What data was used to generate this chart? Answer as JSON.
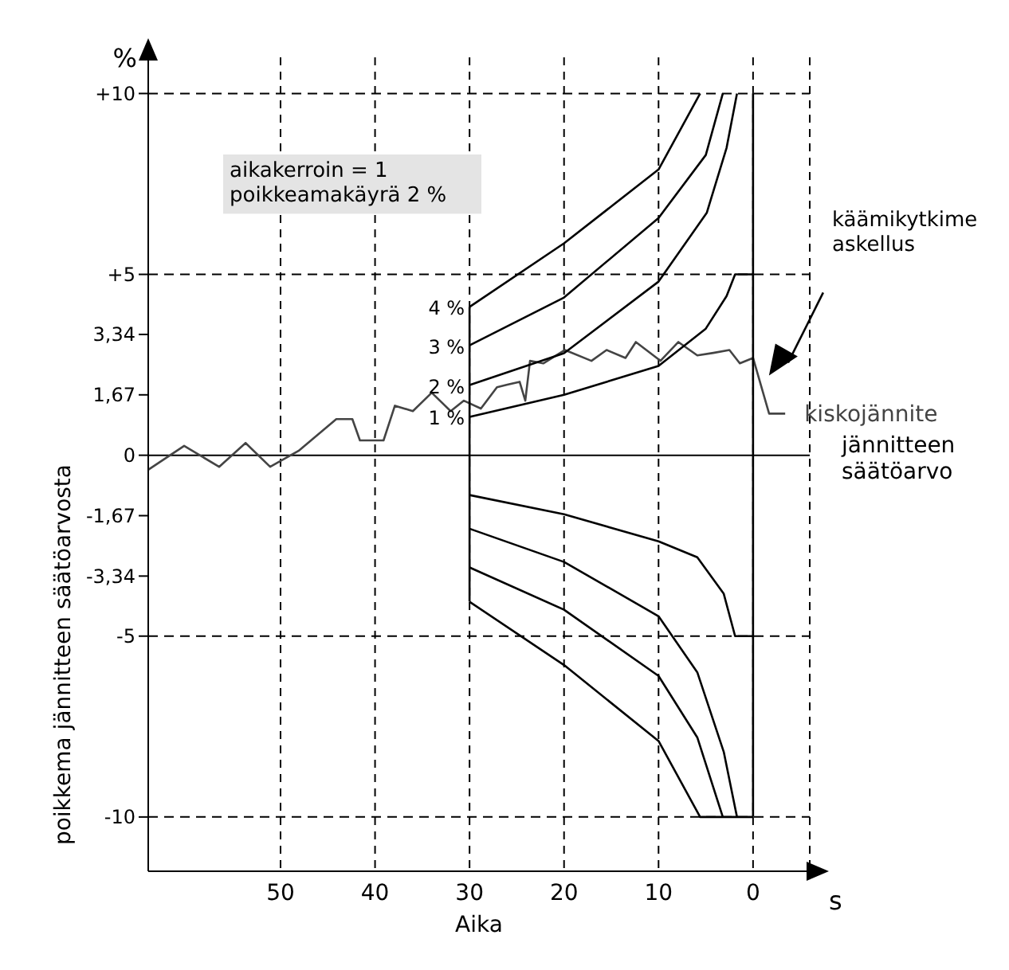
{
  "chart_data": {
    "type": "line",
    "xlabel": "Aika",
    "ylabel": "poikkema jännitteen säätöarvosta",
    "xlim": [
      64,
      -6
    ],
    "ylim": [
      -11.5,
      11
    ],
    "xticks": [
      50,
      40,
      30,
      20,
      10,
      0
    ],
    "yticks": [
      {
        "value": 10,
        "label": "+10"
      },
      {
        "value": 5,
        "label": "+5"
      },
      {
        "value": 3.34,
        "label": "3,34"
      },
      {
        "value": 1.67,
        "label": "1,67"
      },
      0,
      {
        "value": -1.67,
        "label": "-1,67"
      },
      {
        "value": -3.34,
        "label": "-3,34"
      },
      -5,
      -10
    ],
    "grid": "x",
    "legend": false,
    "ref_lines": [
      {
        "axis": "y",
        "value": 10,
        "line_style": "dashed",
        "color": "#000000"
      },
      {
        "axis": "y",
        "value": 5,
        "line_style": "dashed",
        "color": "#000000"
      },
      {
        "axis": "y",
        "value": -5,
        "line_style": "dashed",
        "color": "#000000"
      },
      {
        "axis": "y",
        "value": -10,
        "line_style": "dashed",
        "color": "#000000"
      },
      {
        "axis": "y",
        "value": 0,
        "line_style": "solid",
        "color": "#000000",
        "label": "jännitteen\nsäätöarvo"
      }
    ],
    "annotations": [
      "%",
      "s",
      "aikakerroin = 1\npoikkeamakäyrä 2 %",
      "käämikytkime\naskellus",
      "4 %",
      "3 %",
      "2 %",
      "1 %"
    ],
    "series": [
      {
        "name": "kiskojännite",
        "color": "#444444",
        "x": [
          64,
          60.2,
          56.5,
          53.7,
          51.1,
          48.1,
          44.1,
          42.4,
          41.6,
          39.1,
          37.9,
          36,
          34,
          32,
          30.6,
          28.8,
          27.1,
          26,
          24.7,
          24.1,
          23.6,
          22.2,
          19.9,
          17.1,
          15.5,
          13.5,
          12.4,
          9.8,
          7.9,
          5.9,
          4.2,
          2.5,
          1.4,
          0,
          -1.7,
          -3.4
        ],
        "values": [
          -0.4,
          0.26,
          -0.32,
          0.34,
          -0.32,
          0.12,
          1,
          1,
          0.41,
          0.41,
          1.37,
          1.22,
          1.73,
          1.22,
          1.51,
          1.29,
          1.88,
          1.95,
          2.03,
          1.51,
          2.61,
          2.54,
          2.91,
          2.61,
          2.91,
          2.69,
          3.13,
          2.61,
          3.13,
          2.76,
          2.83,
          2.91,
          2.54,
          2.69,
          1.15,
          1.15
        ]
      },
      {
        "color": "#000000",
        "x": [
          30,
          20,
          14.9,
          10,
          5.6
        ],
        "values": [
          4.1,
          5.86,
          6.9,
          7.9,
          10
        ]
      },
      {
        "color": "#000000",
        "x": [
          30,
          20,
          10,
          5,
          3.2
        ],
        "values": [
          3.04,
          4.36,
          6.56,
          8.3,
          10
        ]
      },
      {
        "color": "#000000",
        "x": [
          30,
          20,
          10,
          4.9,
          2.8,
          1.7
        ],
        "values": [
          1.94,
          2.82,
          4.8,
          6.7,
          8.5,
          10
        ]
      },
      {
        "color": "#000000",
        "x": [
          30,
          20,
          10,
          5,
          2.8,
          1.9,
          0
        ],
        "values": [
          1.06,
          1.67,
          2.47,
          3.5,
          4.4,
          5,
          5
        ]
      },
      {
        "color": "#000000",
        "x": [
          30,
          20,
          10,
          5.9,
          3.1,
          1.9,
          0
        ],
        "values": [
          -1.1,
          -1.63,
          -2.38,
          -2.82,
          -3.83,
          -5,
          -5
        ]
      },
      {
        "color": "#000000",
        "x": [
          30,
          20,
          10,
          5.9,
          3.1,
          1.7
        ],
        "values": [
          -2.03,
          -2.95,
          -4.45,
          -6,
          -8.2,
          -10
        ]
      },
      {
        "color": "#000000",
        "x": [
          30,
          20,
          10,
          5.9,
          3.2
        ],
        "values": [
          -3.1,
          -4.27,
          -6.1,
          -7.8,
          -10
        ]
      },
      {
        "color": "#000000",
        "x": [
          30,
          20,
          10,
          5.6,
          0
        ],
        "values": [
          -4.05,
          -5.8,
          -7.9,
          -10,
          -10
        ]
      },
      {
        "color": "#000000",
        "x": [
          30,
          30
        ],
        "values": [
          4.1,
          -4.05
        ]
      },
      {
        "color": "#000000",
        "x": [
          0,
          0
        ],
        "values": [
          10,
          -10
        ]
      }
    ]
  }
}
